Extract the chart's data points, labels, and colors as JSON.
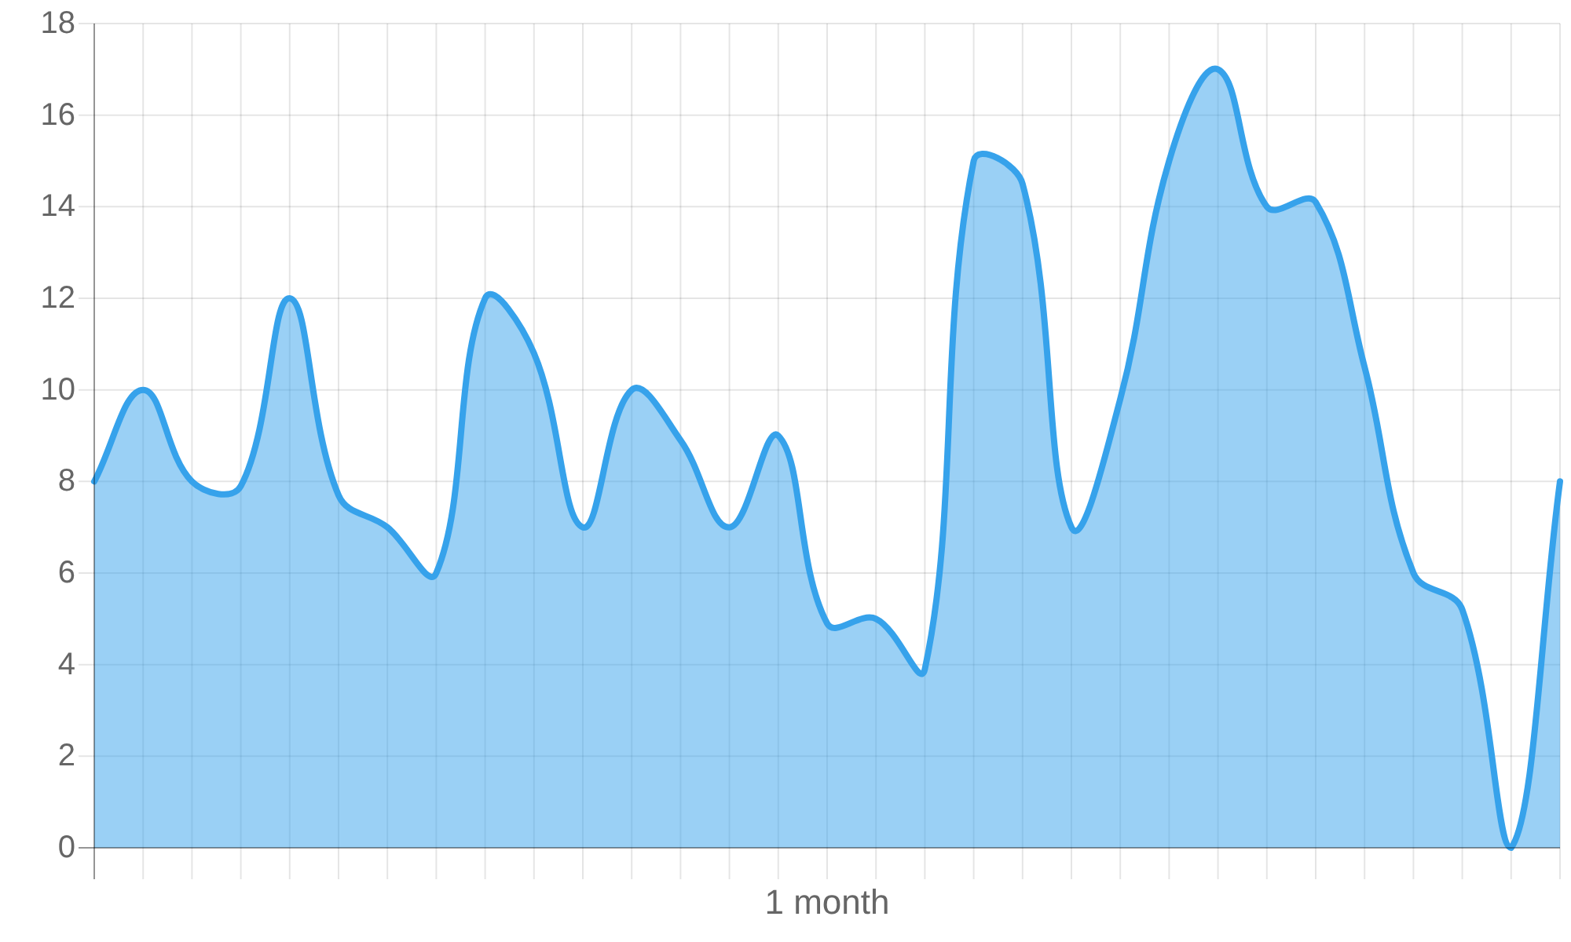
{
  "chart_data": {
    "type": "area",
    "xlabel": "1 month",
    "categories": [
      null,
      null,
      null,
      null,
      null,
      null,
      null,
      null,
      null,
      null,
      null,
      null,
      null,
      null,
      null,
      null,
      null,
      null,
      null,
      null,
      null,
      null,
      null,
      null,
      null,
      null,
      null,
      null,
      null,
      null,
      null
    ],
    "ylim": [
      0,
      18
    ],
    "yticks": [
      0,
      2,
      4,
      6,
      8,
      10,
      12,
      14,
      16,
      18
    ],
    "tick_labels": "y",
    "grid": true,
    "series": [
      {
        "color": "#36a2eb",
        "values": [
          8,
          10,
          8,
          7.9,
          12,
          7.7,
          7,
          6,
          12,
          10.8,
          7,
          10,
          8.9,
          7,
          9,
          4.9,
          5,
          3.9,
          15,
          14.5,
          7,
          9.8,
          15,
          17,
          14,
          14.1,
          10.5,
          6,
          5.2,
          0,
          8
        ]
      }
    ]
  }
}
